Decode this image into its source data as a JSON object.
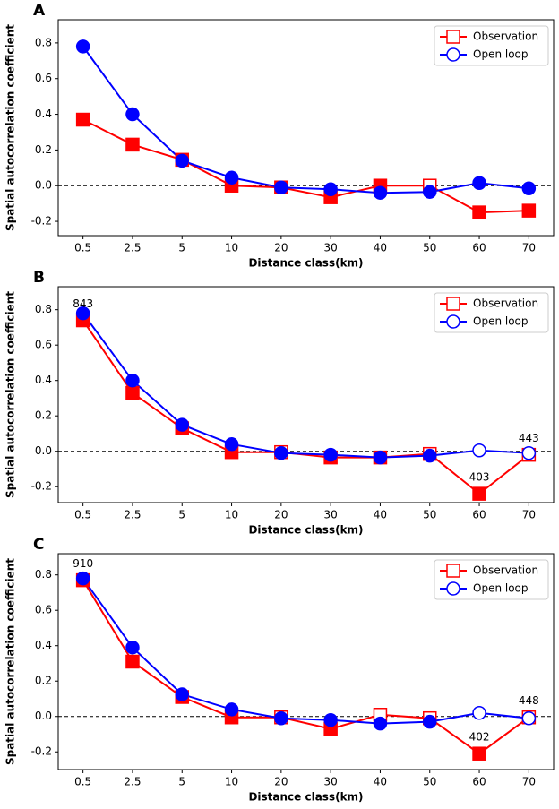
{
  "chart_data": [
    {
      "type": "line",
      "panel": "A",
      "x_label": "Distance class(km)",
      "y_label": "Spatial autocorrelation coefficient",
      "categories": [
        "0.5",
        "2.5",
        "5",
        "10",
        "20",
        "30",
        "40",
        "50",
        "60",
        "70"
      ],
      "ylim": [
        -0.28,
        0.93
      ],
      "yticks": [
        -0.2,
        {
          "value": 0,
          "label": "0.0"
        },
        0.2,
        0.4,
        0.6,
        0.8
      ],
      "reference_line": 0,
      "legend": "upper right",
      "series": [
        {
          "name": "Observation",
          "color": "#ff0000",
          "marker": "square",
          "values": [
            0.37,
            0.23,
            0.145,
            0.0,
            -0.01,
            -0.065,
            0.0,
            0.0,
            -0.15,
            -0.14
          ],
          "filled": [
            true,
            true,
            true,
            true,
            true,
            true,
            true,
            false,
            true,
            true
          ]
        },
        {
          "name": "Open loop",
          "color": "#0000ff",
          "marker": "circle",
          "values": [
            0.78,
            0.4,
            0.14,
            0.045,
            -0.01,
            -0.02,
            -0.04,
            -0.035,
            0.015,
            -0.015
          ],
          "filled": [
            true,
            true,
            true,
            true,
            true,
            true,
            true,
            true,
            true,
            true
          ]
        }
      ],
      "annotations": []
    },
    {
      "type": "line",
      "panel": "B",
      "x_label": "Distance class(km)",
      "y_label": "Spatial autocorrelation coefficient",
      "categories": [
        "0.5",
        "2.5",
        "5",
        "10",
        "20",
        "30",
        "40",
        "50",
        "60",
        "70"
      ],
      "ylim": [
        -0.29,
        0.93
      ],
      "yticks": [
        -0.2,
        {
          "value": 0,
          "label": "0.0"
        },
        0.2,
        0.4,
        0.6,
        0.8
      ],
      "reference_line": 0,
      "legend": "upper right",
      "series": [
        {
          "name": "Observation",
          "color": "#ff0000",
          "marker": "square",
          "values": [
            0.74,
            0.33,
            0.13,
            -0.005,
            -0.005,
            -0.035,
            -0.035,
            -0.015,
            -0.24,
            -0.02
          ],
          "filled": [
            true,
            true,
            true,
            true,
            false,
            true,
            true,
            false,
            true,
            false
          ]
        },
        {
          "name": "Open loop",
          "color": "#0000ff",
          "marker": "circle",
          "values": [
            0.78,
            0.4,
            0.15,
            0.04,
            -0.01,
            -0.02,
            -0.035,
            -0.025,
            0.005,
            -0.01
          ],
          "filled": [
            true,
            true,
            true,
            true,
            true,
            true,
            true,
            true,
            false,
            false
          ]
        }
      ],
      "annotations": [
        {
          "text": "843",
          "category": "0.5"
        },
        {
          "text": "403",
          "category": "60"
        },
        {
          "text": "443",
          "category": "70"
        }
      ]
    },
    {
      "type": "line",
      "panel": "C",
      "x_label": "Distance class(km)",
      "y_label": "Spatial autocorrelation coefficient",
      "categories": [
        "0.5",
        "2.5",
        "5",
        "10",
        "20",
        "30",
        "40",
        "50",
        "60",
        "70"
      ],
      "ylim": [
        -0.3,
        0.92
      ],
      "yticks": [
        -0.2,
        {
          "value": 0,
          "label": "0.0"
        },
        0.2,
        0.4,
        0.6,
        0.8
      ],
      "reference_line": 0,
      "legend": "upper right",
      "series": [
        {
          "name": "Observation",
          "color": "#ff0000",
          "marker": "square",
          "values": [
            0.77,
            0.31,
            0.11,
            -0.005,
            -0.005,
            -0.07,
            0.01,
            -0.01,
            -0.21,
            -0.005
          ],
          "filled": [
            true,
            true,
            true,
            true,
            false,
            true,
            false,
            false,
            true,
            false
          ]
        },
        {
          "name": "Open loop",
          "color": "#0000ff",
          "marker": "circle",
          "values": [
            0.78,
            0.39,
            0.125,
            0.04,
            -0.01,
            -0.02,
            -0.04,
            -0.03,
            0.02,
            -0.01
          ],
          "filled": [
            true,
            true,
            true,
            true,
            true,
            true,
            true,
            true,
            false,
            false
          ]
        }
      ],
      "annotations": [
        {
          "text": "910",
          "category": "0.5"
        },
        {
          "text": "402",
          "category": "60"
        },
        {
          "text": "448",
          "category": "70"
        }
      ]
    }
  ]
}
